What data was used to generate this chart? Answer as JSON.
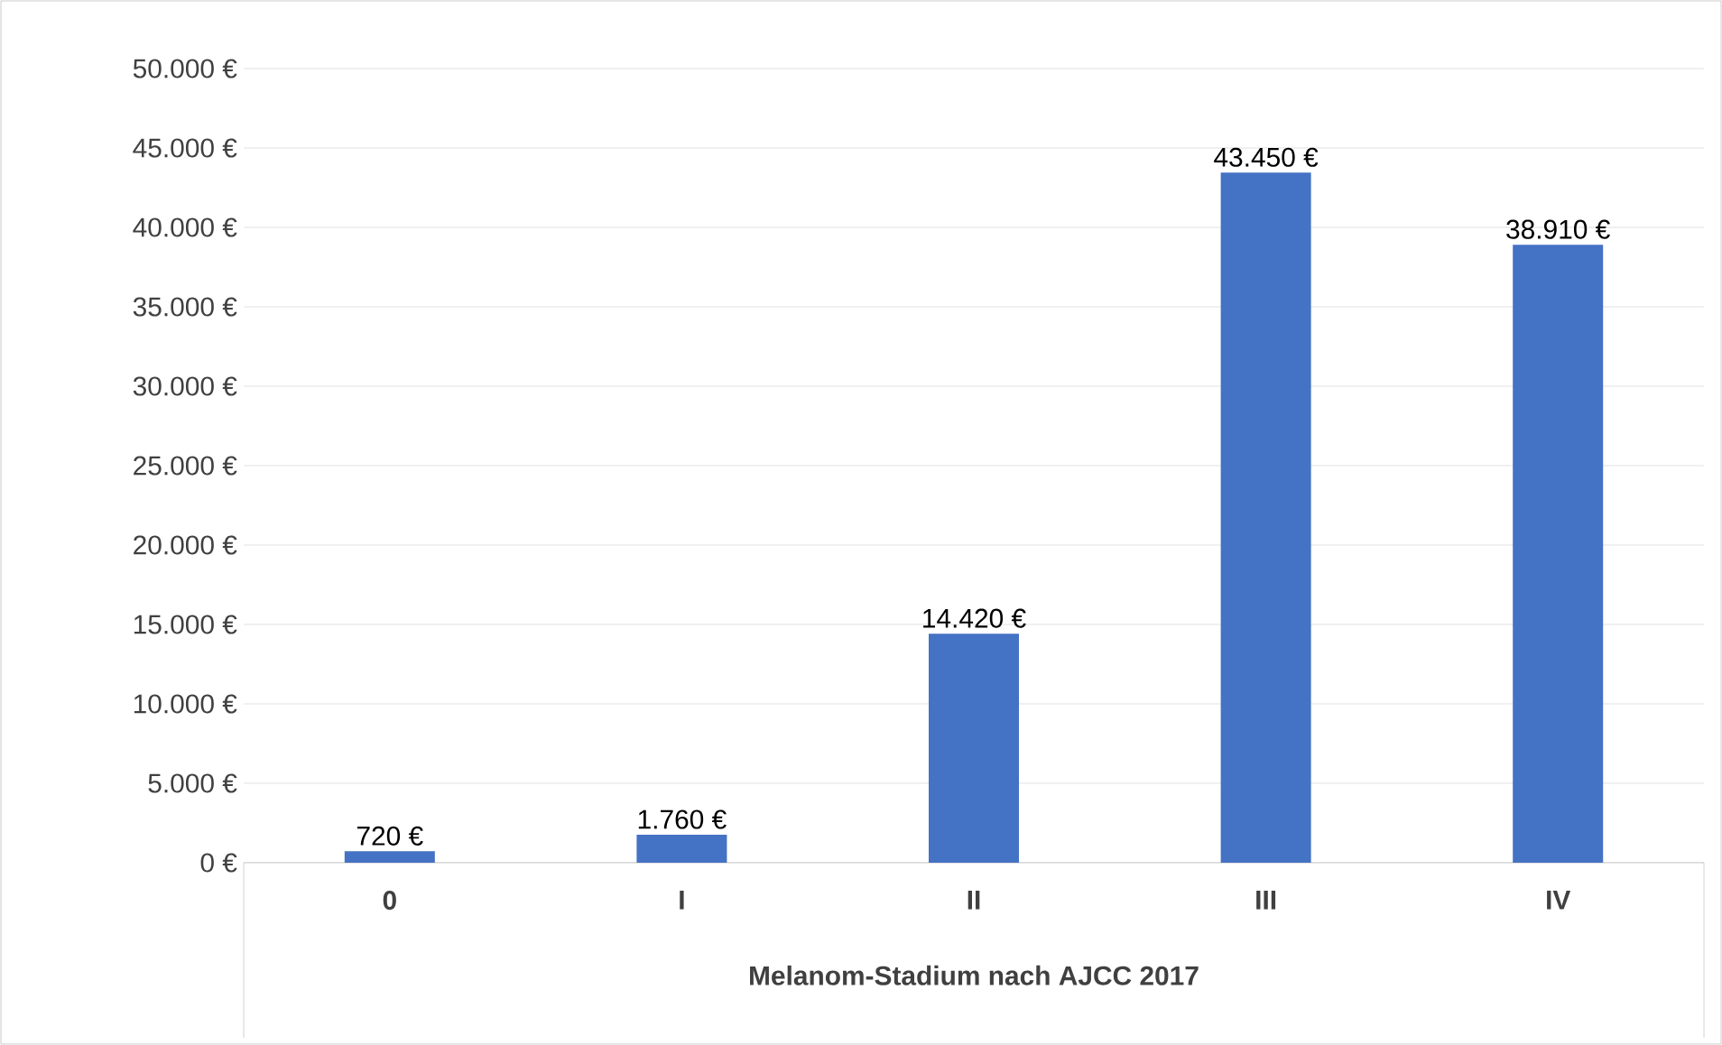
{
  "chart_data": {
    "type": "bar",
    "xlabel": "Melanom-Stadium nach AJCC 2017",
    "categories": [
      "0",
      "I",
      "II",
      "III",
      "IV"
    ],
    "values": [
      720,
      1760,
      14420,
      43450,
      38910
    ],
    "value_labels": [
      "720 €",
      "1.760 €",
      "14.420 €",
      "43.450 €",
      "38.910 €"
    ],
    "color": "#4472c4",
    "ylim": [
      0,
      50000
    ],
    "yticks": [
      {
        "value": 0,
        "label": "0 €"
      },
      {
        "value": 5000,
        "label": "5.000 €"
      },
      {
        "value": 10000,
        "label": "10.000 €"
      },
      {
        "value": 15000,
        "label": "15.000 €"
      },
      {
        "value": 20000,
        "label": "20.000 €"
      },
      {
        "value": 25000,
        "label": "25.000 €"
      },
      {
        "value": 30000,
        "label": "30.000 €"
      },
      {
        "value": 35000,
        "label": "35.000 €"
      },
      {
        "value": 40000,
        "label": "40.000 €"
      },
      {
        "value": 45000,
        "label": "45.000 €"
      },
      {
        "value": 50000,
        "label": "50.000 €"
      }
    ],
    "grid": "y"
  }
}
